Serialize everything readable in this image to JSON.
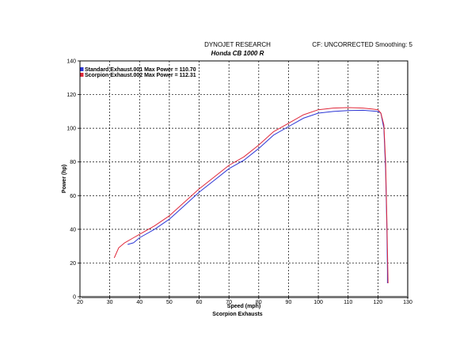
{
  "header": {
    "company": "DYNOJET RESEARCH",
    "bike": "Honda CB 1000 R",
    "settings": "CF: UNCORRECTED  Smoothing: 5",
    "footer": "Scorpion Exhausts"
  },
  "chart_data": {
    "type": "line",
    "xlabel": "Speed (mph)",
    "ylabel": "Power (hp)",
    "xlim": [
      20,
      130
    ],
    "ylim": [
      0,
      140
    ],
    "x_ticks": [
      20,
      30,
      40,
      50,
      60,
      70,
      80,
      90,
      100,
      110,
      120,
      130
    ],
    "y_ticks": [
      0,
      20,
      40,
      60,
      80,
      100,
      120,
      140
    ],
    "grid": true,
    "legend_position": "top-left",
    "series": [
      {
        "name": "Standard Exhaust.001 Max Power = 110.70",
        "color": "#2b36d6",
        "points": [
          [
            36,
            31
          ],
          [
            38,
            32
          ],
          [
            40,
            35
          ],
          [
            45,
            40
          ],
          [
            50,
            46
          ],
          [
            55,
            54
          ],
          [
            60,
            62
          ],
          [
            65,
            69
          ],
          [
            70,
            76
          ],
          [
            75,
            81
          ],
          [
            80,
            88
          ],
          [
            85,
            96
          ],
          [
            90,
            101
          ],
          [
            95,
            106
          ],
          [
            100,
            109
          ],
          [
            105,
            110
          ],
          [
            110,
            110.5
          ],
          [
            115,
            110.7
          ],
          [
            118,
            110.3
          ],
          [
            120,
            110
          ],
          [
            121,
            109
          ],
          [
            122,
            100
          ],
          [
            122.6,
            75
          ],
          [
            123,
            40
          ],
          [
            123.2,
            15
          ],
          [
            123.2,
            8
          ]
        ]
      },
      {
        "name": "Scorpion Exhaust.002 Max Power = 112.31",
        "color": "#e0283a",
        "points": [
          [
            31.5,
            23
          ],
          [
            33,
            29
          ],
          [
            35,
            32
          ],
          [
            38,
            35
          ],
          [
            40,
            37
          ],
          [
            45,
            42
          ],
          [
            50,
            48
          ],
          [
            55,
            56
          ],
          [
            60,
            64
          ],
          [
            65,
            71
          ],
          [
            70,
            78
          ],
          [
            75,
            83
          ],
          [
            80,
            90
          ],
          [
            85,
            98
          ],
          [
            90,
            103
          ],
          [
            95,
            108
          ],
          [
            100,
            111
          ],
          [
            105,
            112
          ],
          [
            110,
            112.3
          ],
          [
            115,
            112
          ],
          [
            118,
            111.5
          ],
          [
            120,
            111
          ],
          [
            121,
            109
          ],
          [
            122,
            102
          ],
          [
            122.6,
            80
          ],
          [
            123,
            45
          ],
          [
            123.3,
            18
          ],
          [
            123.4,
            8
          ]
        ]
      }
    ]
  }
}
